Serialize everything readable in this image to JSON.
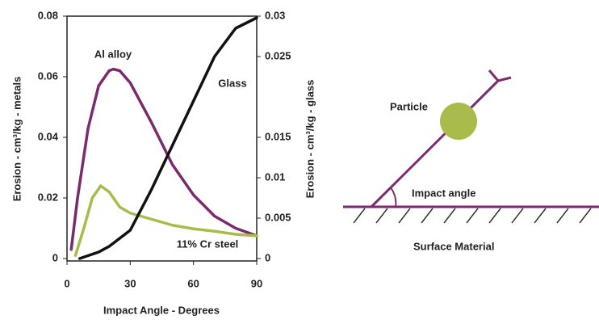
{
  "chart_data": {
    "type": "line",
    "x_label": "Impact Angle - Degrees",
    "y_label": "Erosion - cm³/kg - metals",
    "y2_label": "Erosion - cm³/kg - glass",
    "xlim": [
      0,
      90
    ],
    "xticks": [
      0,
      30,
      60,
      90
    ],
    "ylim": [
      0,
      0.08
    ],
    "yticks": [
      0,
      0.02,
      0.04,
      0.06,
      0.08
    ],
    "y2lim": [
      0,
      0.03
    ],
    "y2ticks": [
      0,
      0.005,
      0.01,
      0.015,
      0.025,
      0.03
    ],
    "series": [
      {
        "name": "Al alloy",
        "color": "#7b2a6e",
        "x": [
          2,
          5,
          10,
          15,
          20,
          22,
          25,
          30,
          40,
          50,
          60,
          70,
          80,
          90
        ],
        "values": [
          0.003,
          0.02,
          0.043,
          0.057,
          0.062,
          0.0625,
          0.062,
          0.058,
          0.045,
          0.031,
          0.021,
          0.014,
          0.01,
          0.0075
        ]
      },
      {
        "name": "11% Cr steel",
        "color": "#a9bc4b",
        "x": [
          4,
          8,
          12,
          16,
          20,
          25,
          30,
          40,
          50,
          60,
          70,
          80,
          90
        ],
        "values": [
          0.001,
          0.01,
          0.02,
          0.024,
          0.022,
          0.017,
          0.015,
          0.013,
          0.011,
          0.0098,
          0.009,
          0.008,
          0.0075
        ]
      },
      {
        "name": "Glass",
        "color": "#111111",
        "axis": "y2",
        "x": [
          6,
          15,
          20,
          30,
          40,
          50,
          60,
          70,
          80,
          90
        ],
        "values": [
          0,
          0.0008,
          0.0015,
          0.0035,
          0.0085,
          0.014,
          0.0195,
          0.025,
          0.0285,
          0.0298
        ]
      }
    ]
  },
  "diagram": {
    "particle": "Particle",
    "impact_angle": "Impact angle",
    "surface": "Surface Material"
  }
}
